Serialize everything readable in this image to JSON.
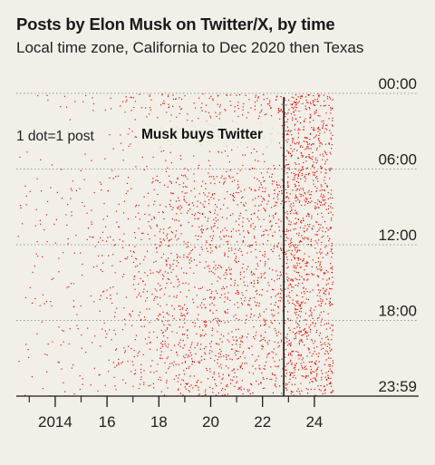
{
  "title": "Posts by Elon Musk on Twitter/X, by time",
  "subtitle": "Local time zone, California to Dec 2020 then Texas",
  "chart_data": {
    "type": "scatter",
    "x_axis": {
      "unit": "year",
      "range": [
        2012.5,
        2024.7
      ],
      "tick_labels": [
        "2014",
        "16",
        "18",
        "20",
        "22",
        "24"
      ],
      "tick_values": [
        2014,
        2016,
        2018,
        2020,
        2022,
        2024
      ],
      "minor_ticks": [
        2013,
        2015,
        2017,
        2019,
        2021,
        2023
      ]
    },
    "y_axis": {
      "unit": "time of day",
      "range_hours": [
        0,
        24
      ],
      "tick_labels": [
        "00:00",
        "06:00",
        "12:00",
        "18:00",
        "23:59"
      ],
      "tick_values_hours": [
        0,
        6,
        12,
        18,
        24
      ],
      "inverted": true,
      "position": "right"
    },
    "grid": "horizontal dotted lines",
    "annotations": [
      {
        "text": "1 dot=1 post",
        "style": "key"
      },
      {
        "text": "Musk buys Twitter",
        "x": 2022.82,
        "style": "bold vertical line"
      }
    ],
    "density_by_year": [
      {
        "period": "2012.5-2013",
        "relative_density": 0.05
      },
      {
        "period": "2013-2014",
        "relative_density": 0.08
      },
      {
        "period": "2014-2015",
        "relative_density": 0.11
      },
      {
        "period": "2015-2016",
        "relative_density": 0.15
      },
      {
        "period": "2016-2017",
        "relative_density": 0.2
      },
      {
        "period": "2017-2018",
        "relative_density": 0.32
      },
      {
        "period": "2018-2019",
        "relative_density": 0.55
      },
      {
        "period": "2019-2020",
        "relative_density": 0.5
      },
      {
        "period": "2020-2021",
        "relative_density": 0.58
      },
      {
        "period": "2021-2022",
        "relative_density": 0.55
      },
      {
        "period": "2022-2022.82",
        "relative_density": 0.62
      },
      {
        "period": "2022.82-2024.7",
        "relative_density": 1.0
      }
    ],
    "dot_color": "#e3120b",
    "line_color": "#1a1a1a"
  }
}
